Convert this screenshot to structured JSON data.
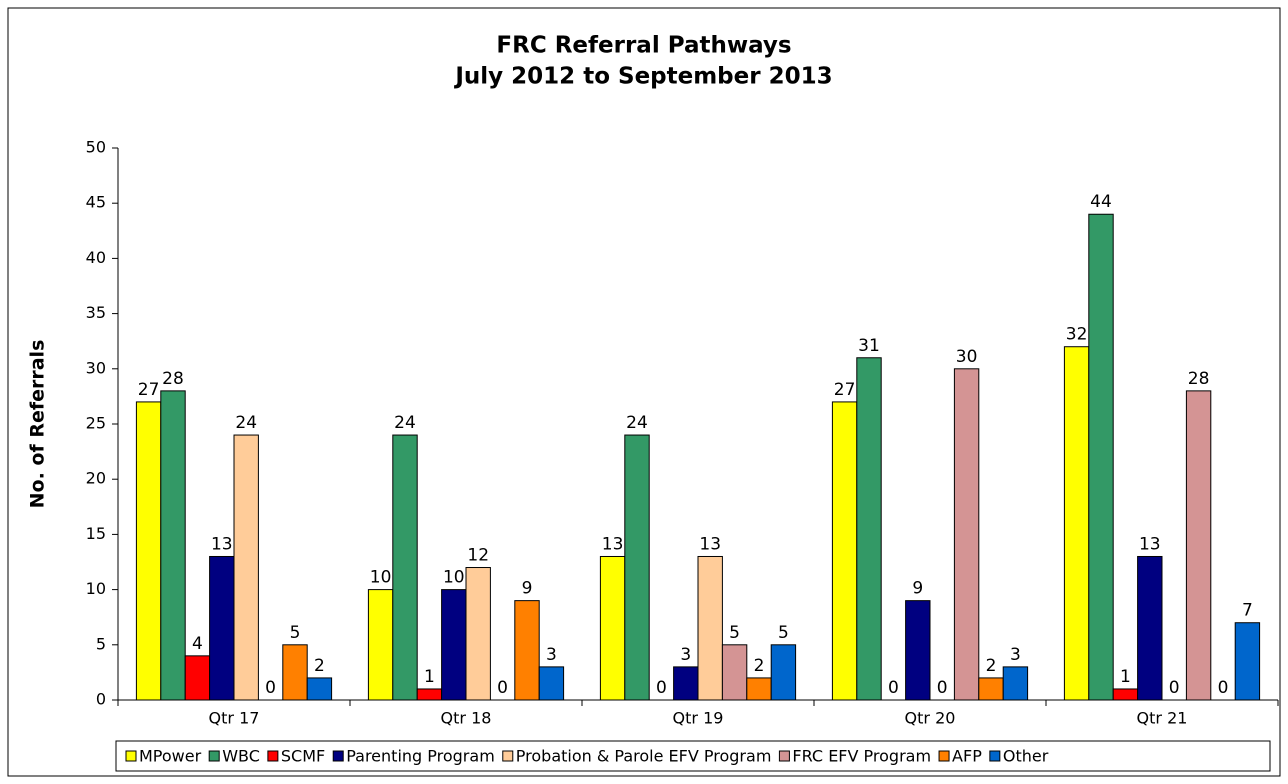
{
  "chart_data": {
    "type": "bar",
    "title": [
      "FRC Referral Pathways",
      "July 2012 to September 2013"
    ],
    "y_label": "No. of Referrals",
    "categories": [
      "Qtr 17",
      "Qtr 18",
      "Qtr 19",
      "Qtr 20",
      "Qtr 21"
    ],
    "series": [
      {
        "name": "MPower",
        "color": "#ffff00",
        "values": [
          27,
          10,
          13,
          27,
          32
        ]
      },
      {
        "name": "WBC",
        "color": "#339966",
        "values": [
          28,
          24,
          24,
          31,
          44
        ]
      },
      {
        "name": "SCMF",
        "color": "#ff0000",
        "values": [
          4,
          1,
          0,
          0,
          1
        ]
      },
      {
        "name": "Parenting Program",
        "color": "#000080",
        "values": [
          13,
          10,
          3,
          9,
          13
        ]
      },
      {
        "name": "Probation & Parole EFV Program",
        "color": "#ffcc99",
        "values": [
          24,
          12,
          13,
          0,
          0
        ]
      },
      {
        "name": "FRC EFV Program",
        "color": "#d49494",
        "values": [
          0,
          0,
          5,
          30,
          28
        ]
      },
      {
        "name": "AFP",
        "color": "#ff8000",
        "values": [
          5,
          9,
          2,
          2,
          0
        ]
      },
      {
        "name": "Other",
        "color": "#0066cc",
        "values": [
          2,
          3,
          5,
          3,
          7
        ]
      }
    ],
    "ylim": [
      0,
      50
    ],
    "yticks": [
      0,
      5,
      10,
      15,
      20,
      25,
      30,
      35,
      40,
      45,
      50
    ],
    "legend": "bottom"
  }
}
